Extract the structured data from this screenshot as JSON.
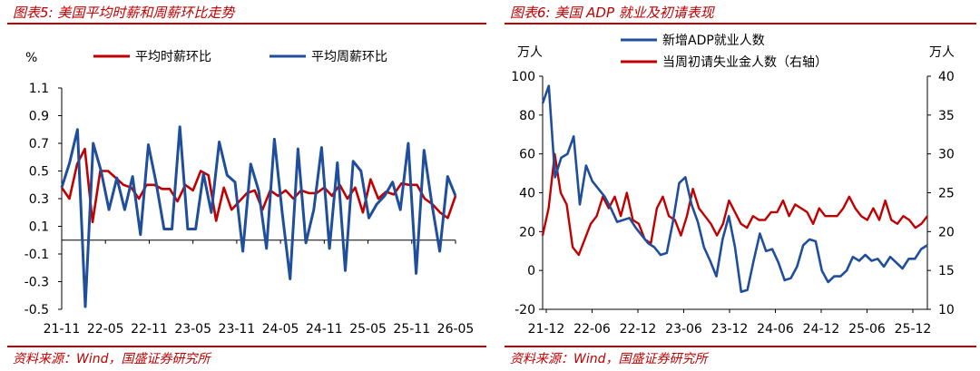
{
  "colors": {
    "accent": "#c00000",
    "series_red": "#c00000",
    "series_blue": "#1f4e9c"
  },
  "left": {
    "title": "图表5:  美国平均时薪和周薪环比走势",
    "source": "资料来源：Wind，国盛证券研究所",
    "unit": "%",
    "chart_data": {
      "type": "line",
      "ylim": [
        -0.5,
        1.1
      ],
      "yticks": [
        "1.1",
        "0.9",
        "0.7",
        "0.5",
        "0.3",
        "0.1",
        "-0.1",
        "-0.3",
        "-0.5"
      ],
      "xticks": [
        "21-11",
        "22-05",
        "22-11",
        "23-05",
        "23-11",
        "24-05",
        "24-11",
        "25-05",
        "25-11",
        "26-05"
      ],
      "legend": [
        "平均时薪环比",
        "平均周薪环比"
      ],
      "series": [
        {
          "name": "平均时薪环比",
          "color": "#c00000",
          "values": [
            0.38,
            0.3,
            0.55,
            0.66,
            0.13,
            0.5,
            0.5,
            0.45,
            0.4,
            0.38,
            0.3,
            0.4,
            0.4,
            0.37,
            0.37,
            0.28,
            0.4,
            0.36,
            0.5,
            0.47,
            0.14,
            0.38,
            0.22,
            0.28,
            0.34,
            0.36,
            0.22,
            0.36,
            0.32,
            0.36,
            0.3,
            0.36,
            0.34,
            0.34,
            0.38,
            0.32,
            0.4,
            0.3,
            0.38,
            0.2,
            0.44,
            0.3,
            0.35,
            0.33,
            0.41,
            0.4,
            0.4,
            0.3,
            0.26,
            0.2,
            0.16,
            0.32
          ]
        },
        {
          "name": "平均周薪环比",
          "color": "#1f4e9c",
          "values": [
            0.38,
            0.56,
            0.8,
            -0.48,
            0.7,
            0.5,
            0.22,
            0.45,
            0.22,
            0.46,
            0.04,
            0.69,
            0.41,
            0.08,
            0.08,
            0.82,
            0.08,
            0.08,
            0.48,
            0.2,
            0.71,
            0.47,
            0.42,
            -0.08,
            0.55,
            0.36,
            -0.06,
            0.73,
            0.2,
            -0.28,
            0.66,
            -0.02,
            0.22,
            0.67,
            -0.06,
            0.56,
            -0.22,
            0.57,
            0.5,
            0.16,
            0.26,
            0.32,
            0.42,
            0.22,
            0.7,
            -0.24,
            0.65,
            0.26,
            -0.08,
            0.46,
            0.32
          ]
        }
      ]
    }
  },
  "right": {
    "title": "图表6:  美国 ADP 就业及初请表现",
    "source": "资料来源：Wind，国盛证券研究所",
    "unit_left": "万人",
    "unit_right": "万人",
    "chart_data": {
      "type": "line",
      "ylim_left": [
        -20,
        100
      ],
      "ylim_right": [
        10,
        40
      ],
      "yticks_left": [
        "100",
        "80",
        "60",
        "40",
        "20",
        "0",
        "-20"
      ],
      "yticks_right": [
        "40",
        "35",
        "30",
        "25",
        "20",
        "15",
        "10"
      ],
      "xticks": [
        "21-12",
        "22-06",
        "22-12",
        "23-06",
        "23-12",
        "24-06",
        "24-12",
        "25-06",
        "25-12"
      ],
      "legend": [
        "新增ADP就业人数",
        "当周初请失业金人数（右轴）"
      ],
      "series": [
        {
          "name": "新增ADP就业人数",
          "axis": "left",
          "color": "#1f4e9c",
          "values": [
            86,
            95,
            48,
            58,
            60,
            69,
            34,
            54,
            46,
            42,
            38,
            32,
            25,
            26,
            27,
            22,
            18,
            14,
            12,
            8,
            9,
            25,
            45,
            48,
            34,
            25,
            12,
            5,
            -3,
            16,
            28,
            12,
            -11,
            -10,
            5,
            19,
            10,
            11,
            4,
            -5,
            -4,
            2,
            13,
            16,
            15,
            0,
            -6,
            -3,
            -3,
            0,
            7,
            5,
            8,
            5,
            6,
            2,
            7,
            4,
            1,
            6,
            6,
            11,
            13
          ]
        },
        {
          "name": "当周初请失业金人数（右轴）",
          "axis": "right",
          "color": "#c00000",
          "values": [
            19.5,
            23,
            30,
            25,
            23.5,
            18,
            17,
            19,
            21,
            22,
            24.5,
            23,
            24.5,
            22,
            25,
            21.5,
            21,
            19,
            18.5,
            23,
            24.5,
            22,
            21.5,
            19.5,
            22,
            25.5,
            23,
            22,
            21,
            19.5,
            21,
            24,
            22.5,
            21,
            20.5,
            22,
            21.5,
            21.5,
            22.5,
            22.5,
            24,
            22,
            23.5,
            23,
            22.5,
            21,
            23,
            22,
            22,
            22,
            23,
            24.5,
            23,
            22,
            21.5,
            23,
            21.5,
            24,
            21.5,
            21,
            22,
            21.5,
            20.5,
            21,
            22
          ]
        }
      ]
    }
  }
}
